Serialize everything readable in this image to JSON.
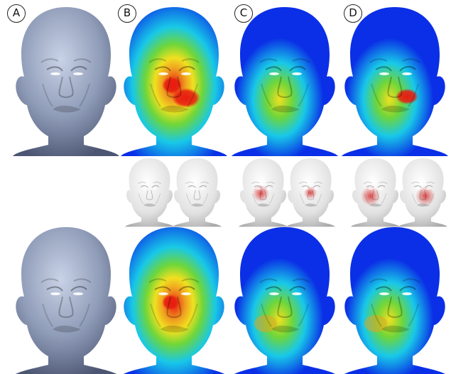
{
  "column_labels": [
    "A",
    "B",
    "C",
    "D"
  ],
  "colors": {
    "gray_mesh": "#8f9cb8",
    "white_mesh": "#e6e6e6",
    "heat_blue": "#0a2fe6",
    "heat_cyan": "#18c8e8",
    "heat_green": "#6fd63a",
    "heat_yellow": "#f0e020",
    "heat_red": "#e81c10",
    "highlight_red": "#d83a3a"
  }
}
